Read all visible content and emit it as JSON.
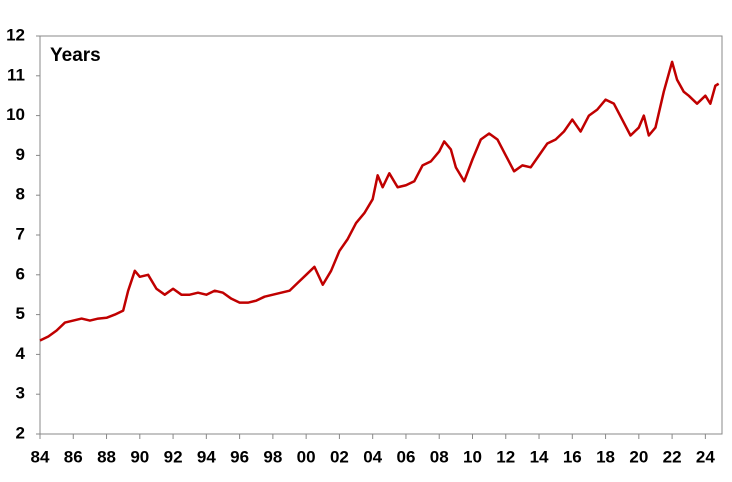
{
  "chart_data": {
    "type": "line",
    "title": "Years",
    "x": [
      1984.0,
      1984.5,
      1985.0,
      1985.5,
      1986.0,
      1986.5,
      1987.0,
      1987.5,
      1988.0,
      1988.5,
      1989.0,
      1989.3,
      1989.7,
      1990.0,
      1990.5,
      1991.0,
      1991.5,
      1992.0,
      1992.5,
      1993.0,
      1993.5,
      1994.0,
      1994.5,
      1995.0,
      1995.5,
      1996.0,
      1996.5,
      1997.0,
      1997.5,
      1998.0,
      1998.5,
      1999.0,
      1999.5,
      2000.0,
      2000.5,
      2001.0,
      2001.5,
      2002.0,
      2002.5,
      2003.0,
      2003.5,
      2004.0,
      2004.3,
      2004.6,
      2005.0,
      2005.5,
      2006.0,
      2006.5,
      2007.0,
      2007.5,
      2008.0,
      2008.3,
      2008.7,
      2009.0,
      2009.5,
      2010.0,
      2010.5,
      2011.0,
      2011.5,
      2012.0,
      2012.5,
      2013.0,
      2013.5,
      2014.0,
      2014.5,
      2015.0,
      2015.5,
      2016.0,
      2016.5,
      2017.0,
      2017.5,
      2018.0,
      2018.5,
      2019.0,
      2019.5,
      2020.0,
      2020.3,
      2020.6,
      2021.0,
      2021.5,
      2022.0,
      2022.3,
      2022.7,
      2023.0,
      2023.5,
      2024.0,
      2024.3,
      2024.6,
      2024.8
    ],
    "series": [
      {
        "name": "Years",
        "color": "#c00000",
        "values": [
          4.35,
          4.45,
          4.6,
          4.8,
          4.85,
          4.9,
          4.85,
          4.9,
          4.92,
          5.0,
          5.1,
          5.6,
          6.1,
          5.95,
          6.0,
          5.65,
          5.5,
          5.65,
          5.5,
          5.5,
          5.55,
          5.5,
          5.6,
          5.55,
          5.4,
          5.3,
          5.3,
          5.35,
          5.45,
          5.5,
          5.55,
          5.6,
          5.8,
          6.0,
          6.2,
          5.75,
          6.1,
          6.6,
          6.9,
          7.3,
          7.55,
          7.9,
          8.5,
          8.2,
          8.55,
          8.2,
          8.25,
          8.35,
          8.75,
          8.85,
          9.1,
          9.35,
          9.15,
          8.7,
          8.35,
          8.9,
          9.4,
          9.55,
          9.4,
          9.0,
          8.6,
          8.75,
          8.7,
          9.0,
          9.3,
          9.4,
          9.6,
          9.9,
          9.6,
          10.0,
          10.15,
          10.4,
          10.3,
          9.9,
          9.5,
          9.7,
          10.0,
          9.5,
          9.7,
          10.6,
          11.35,
          10.9,
          10.6,
          10.5,
          10.3,
          10.5,
          10.3,
          10.75,
          10.8
        ]
      }
    ],
    "xlim": [
      1984,
      2025
    ],
    "xticks": [
      {
        "value": 1984,
        "label": "84"
      },
      {
        "value": 1986,
        "label": "86"
      },
      {
        "value": 1988,
        "label": "88"
      },
      {
        "value": 1990,
        "label": "90"
      },
      {
        "value": 1992,
        "label": "92"
      },
      {
        "value": 1994,
        "label": "94"
      },
      {
        "value": 1996,
        "label": "96"
      },
      {
        "value": 1998,
        "label": "98"
      },
      {
        "value": 2000,
        "label": "00"
      },
      {
        "value": 2002,
        "label": "02"
      },
      {
        "value": 2004,
        "label": "04"
      },
      {
        "value": 2006,
        "label": "06"
      },
      {
        "value": 2008,
        "label": "08"
      },
      {
        "value": 2010,
        "label": "10"
      },
      {
        "value": 2012,
        "label": "12"
      },
      {
        "value": 2014,
        "label": "14"
      },
      {
        "value": 2016,
        "label": "16"
      },
      {
        "value": 2018,
        "label": "18"
      },
      {
        "value": 2020,
        "label": "20"
      },
      {
        "value": 2022,
        "label": "22"
      },
      {
        "value": 2024,
        "label": "24"
      }
    ],
    "ylim": [
      2,
      12
    ],
    "yticks": [
      2,
      3,
      4,
      5,
      6,
      7,
      8,
      9,
      10,
      11,
      12
    ]
  }
}
